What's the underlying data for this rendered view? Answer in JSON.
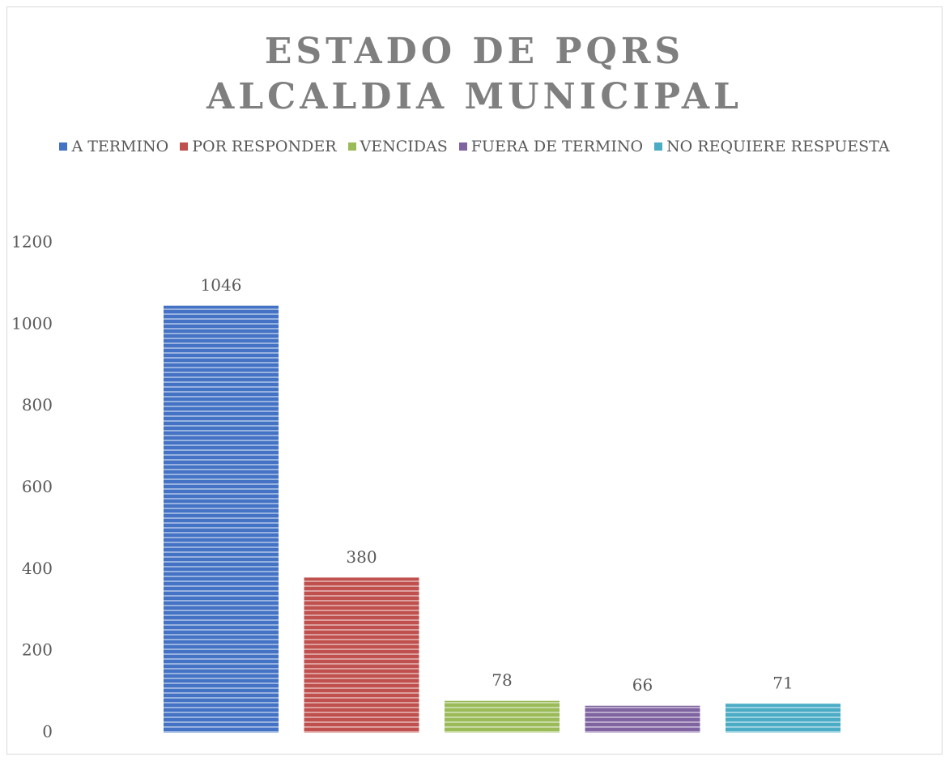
{
  "chart_data": {
    "type": "bar",
    "title": "ESTADO DE PQRS ALCALDIA MUNICIPAL",
    "categories": [
      null
    ],
    "series": [
      {
        "name": "A TERMINO",
        "color": "#4472c4",
        "values": [
          1046
        ]
      },
      {
        "name": "POR RESPONDER",
        "color": "#c0504d",
        "values": [
          380
        ]
      },
      {
        "name": "VENCIDAS",
        "color": "#9bbb59",
        "values": [
          78
        ]
      },
      {
        "name": "FUERA DE TERMINO",
        "color": "#8064a2",
        "values": [
          66
        ]
      },
      {
        "name": "NO REQUIERE RESPUESTA",
        "color": "#4bacc6",
        "values": [
          71
        ]
      }
    ],
    "ylim": [
      0,
      1200
    ],
    "yticks": [
      0,
      200,
      400,
      600,
      800,
      1000,
      1200
    ],
    "grid": false,
    "legend": "top"
  }
}
